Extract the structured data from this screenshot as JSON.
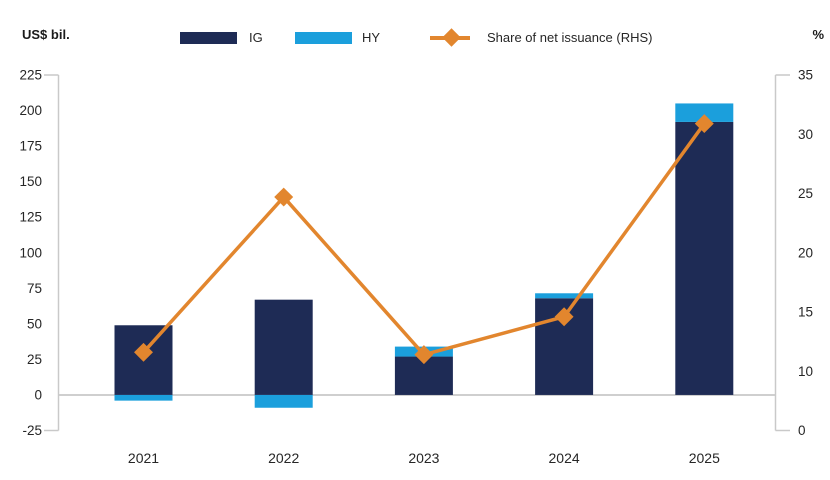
{
  "header": {
    "left_axis_title": "US$ bil.",
    "right_axis_title": "%"
  },
  "legend": [
    {
      "label": "IG",
      "swatch": "bar",
      "color": "#1e2b55"
    },
    {
      "label": "HY",
      "swatch": "bar",
      "color": "#1b9fdc"
    },
    {
      "label": "Share of net issuance (RHS)",
      "swatch": "line-diamond",
      "color": "#e2862e"
    }
  ],
  "chart_data": {
    "type": "bar",
    "subtype": "stacked-bars-with-right-axis-line",
    "title": "",
    "categories": [
      "2021",
      "2022",
      "2023",
      "2024",
      "2025"
    ],
    "series": [
      {
        "name": "IG",
        "type": "bar",
        "axis": "left",
        "color": "#1e2b55",
        "values": [
          49,
          67,
          27,
          68,
          192
        ]
      },
      {
        "name": "HY",
        "type": "bar",
        "axis": "left",
        "color": "#1b9fdc",
        "values": [
          -4,
          -9,
          7,
          3.5,
          13
        ]
      },
      {
        "name": "Share of net issuance (RHS)",
        "type": "line",
        "marker": "diamond",
        "axis": "right",
        "color": "#e2862e",
        "values": [
          11.6,
          24.7,
          11.4,
          14.6,
          30.9
        ]
      }
    ],
    "left_axis": {
      "unit": "US$ bil.",
      "min": -25,
      "max": 225,
      "ticks": [
        225,
        200,
        175,
        150,
        125,
        100,
        75,
        50,
        25,
        0,
        -25
      ]
    },
    "right_axis": {
      "unit": "%",
      "top": 35,
      "ticks": [
        35,
        30,
        25,
        20,
        15,
        10,
        0
      ]
    },
    "grid": "zero-line-only",
    "legend_position": "top"
  },
  "colors": {
    "axis": "#c9c9c9",
    "zero_line": "#cfcfcf",
    "text": "#262626"
  }
}
